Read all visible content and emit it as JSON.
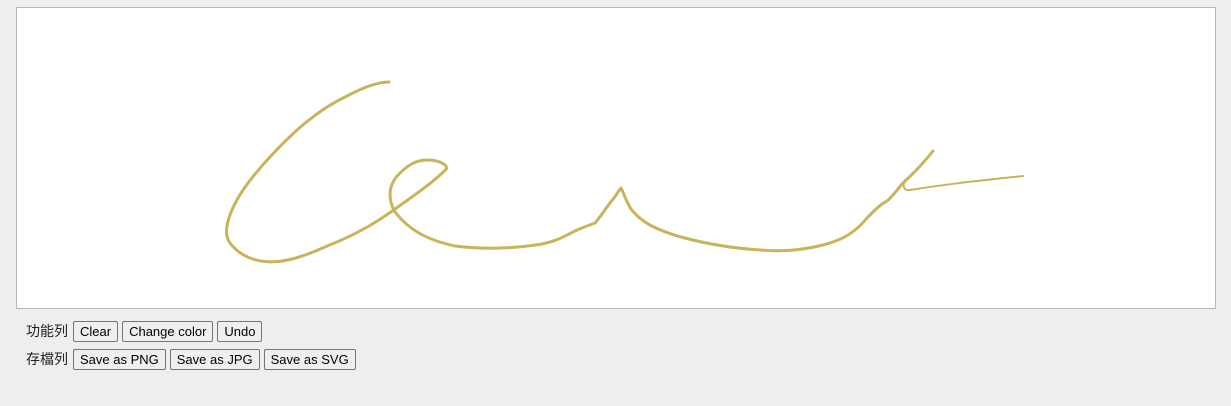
{
  "signature": {
    "stroke_color": "#c8b45a"
  },
  "toolbar": {
    "label": "功能列",
    "clear": "Clear",
    "change_color": "Change color",
    "undo": "Undo"
  },
  "savebar": {
    "label": "存檔列",
    "png": "Save as PNG",
    "jpg": "Save as JPG",
    "svg": "Save as SVG"
  }
}
